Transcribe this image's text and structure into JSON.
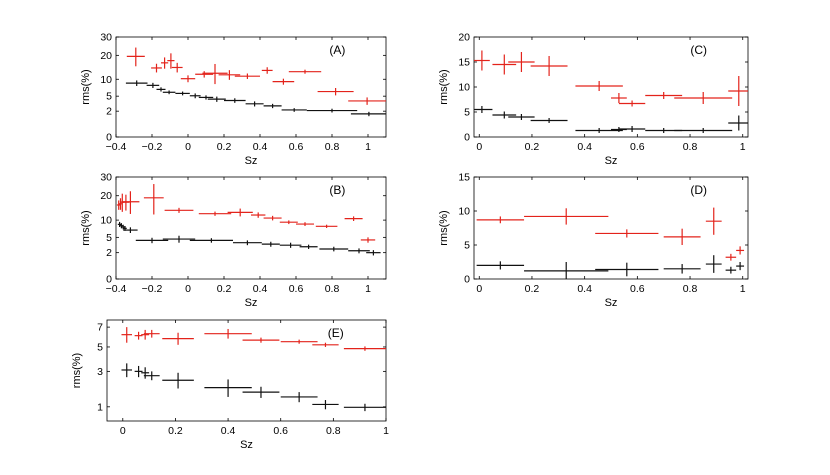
{
  "colors": {
    "red": "#e3231b",
    "black": "#111111",
    "axis": "#000000"
  },
  "chart_data": [
    {
      "id": "A",
      "type": "scatter",
      "title": "(A)",
      "xlabel": "Sz",
      "ylabel": "rms(%)",
      "xlim": [
        -0.4,
        1.1
      ],
      "ylim": [
        0,
        30
      ],
      "yscale": "sqrt",
      "xticks": [
        -0.4,
        -0.2,
        0,
        0.2,
        0.4,
        0.6,
        0.8,
        1
      ],
      "xtick_labels": [
        "−0.4",
        "−0.2",
        "0",
        "0.2",
        "0.4",
        "0.6",
        "0.8",
        "1"
      ],
      "yticks": [
        0,
        2,
        5,
        10,
        20,
        30
      ],
      "ytick_labels": [
        "0",
        "2",
        "5",
        "10",
        "20",
        "30"
      ],
      "series": [
        {
          "name": "red",
          "points": [
            [
              -0.29,
              0.05,
              19.5,
              4.5
            ],
            [
              -0.175,
              0.03,
              14.3,
              1.8
            ],
            [
              -0.13,
              0.02,
              16.5,
              2.5
            ],
            [
              -0.095,
              0.02,
              17.5,
              3.5
            ],
            [
              -0.06,
              0.03,
              14.5,
              2
            ],
            [
              0.0,
              0.04,
              10.2,
              1.2
            ],
            [
              0.09,
              0.05,
              11.8,
              1.2
            ],
            [
              0.15,
              0.07,
              12.2,
              3.8
            ],
            [
              0.23,
              0.06,
              11.6,
              1.8
            ],
            [
              0.33,
              0.07,
              11.1,
              1.0
            ],
            [
              0.44,
              0.03,
              13.3,
              1.3
            ],
            [
              0.53,
              0.06,
              9.2,
              1.0
            ],
            [
              0.65,
              0.09,
              12.8,
              0.8
            ],
            [
              0.82,
              0.1,
              6.2,
              1.0
            ],
            [
              0.995,
              0.105,
              3.9,
              0.8
            ]
          ]
        },
        {
          "name": "black",
          "points": [
            [
              -0.285,
              0.06,
              8.7,
              0.9
            ],
            [
              -0.195,
              0.035,
              8.0,
              0.8
            ],
            [
              -0.15,
              0.025,
              6.8,
              0.6
            ],
            [
              -0.105,
              0.035,
              6.0,
              0.5
            ],
            [
              -0.03,
              0.04,
              5.7,
              0.5
            ],
            [
              0.04,
              0.03,
              5.1,
              0.6
            ],
            [
              0.1,
              0.04,
              4.7,
              0.5
            ],
            [
              0.16,
              0.05,
              4.3,
              0.6
            ],
            [
              0.26,
              0.06,
              4.0,
              0.5
            ],
            [
              0.37,
              0.05,
              3.3,
              0.5
            ],
            [
              0.47,
              0.05,
              2.9,
              0.4
            ],
            [
              0.59,
              0.07,
              2.2,
              0.3
            ],
            [
              0.8,
              0.14,
              2.1,
              0.3
            ],
            [
              1.005,
              0.1,
              1.6,
              0.3
            ]
          ]
        }
      ]
    },
    {
      "id": "B",
      "type": "scatter",
      "title": "(B)",
      "xlabel": "Sz",
      "ylabel": "rms(%)",
      "xlim": [
        -0.4,
        1.1
      ],
      "ylim": [
        0,
        30
      ],
      "yscale": "sqrt",
      "xticks": [
        -0.4,
        -0.2,
        0,
        0.2,
        0.4,
        0.6,
        0.8,
        1
      ],
      "xtick_labels": [
        "−0.4",
        "−0.2",
        "0",
        "0.2",
        "0.4",
        "0.6",
        "0.8",
        "1"
      ],
      "yticks": [
        0,
        2,
        5,
        10,
        20,
        30
      ],
      "ytick_labels": [
        "0",
        "2",
        "5",
        "10",
        "20",
        "30"
      ],
      "series": [
        {
          "name": "red",
          "points": [
            [
              -0.385,
              0.01,
              15.8,
              2.0
            ],
            [
              -0.375,
              0.01,
              16.3,
              2.5
            ],
            [
              -0.365,
              0.01,
              17.0,
              4.0
            ],
            [
              -0.345,
              0.02,
              17.0,
              3.5
            ],
            [
              -0.32,
              0.05,
              17.2,
              5.0
            ],
            [
              -0.19,
              0.055,
              19.0,
              7.0
            ],
            [
              -0.05,
              0.08,
              13.6,
              1.0
            ],
            [
              0.15,
              0.09,
              12.3,
              0.8
            ],
            [
              0.29,
              0.07,
              12.8,
              1.5
            ],
            [
              0.39,
              0.04,
              11.8,
              1.0
            ],
            [
              0.47,
              0.05,
              10.7,
              0.8
            ],
            [
              0.56,
              0.05,
              9.3,
              0.6
            ],
            [
              0.65,
              0.05,
              8.7,
              0.6
            ],
            [
              0.77,
              0.06,
              8.0,
              0.5
            ],
            [
              0.92,
              0.05,
              10.5,
              0.8
            ],
            [
              1.0,
              0.04,
              4.4,
              0.6
            ]
          ]
        },
        {
          "name": "black",
          "points": [
            [
              -0.38,
              0.01,
              8.6,
              0.8
            ],
            [
              -0.37,
              0.01,
              8.2,
              0.8
            ],
            [
              -0.36,
              0.01,
              7.8,
              0.7
            ],
            [
              -0.35,
              0.01,
              7.4,
              0.7
            ],
            [
              -0.32,
              0.04,
              6.9,
              0.8
            ],
            [
              -0.2,
              0.09,
              4.3,
              0.6
            ],
            [
              -0.05,
              0.09,
              4.6,
              0.8
            ],
            [
              0.13,
              0.12,
              4.3,
              0.5
            ],
            [
              0.33,
              0.08,
              3.8,
              0.5
            ],
            [
              0.46,
              0.05,
              3.5,
              0.5
            ],
            [
              0.57,
              0.06,
              3.3,
              0.5
            ],
            [
              0.67,
              0.05,
              3.0,
              0.4
            ],
            [
              0.81,
              0.08,
              2.6,
              0.4
            ],
            [
              0.95,
              0.06,
              2.3,
              0.4
            ],
            [
              1.03,
              0.04,
              2.0,
              0.4
            ]
          ]
        }
      ]
    },
    {
      "id": "C",
      "type": "scatter",
      "title": "(C)",
      "xlabel": "Sz",
      "ylabel": "rms(%)",
      "xlim": [
        -0.02,
        1.02
      ],
      "ylim": [
        0,
        20
      ],
      "yscale": "linear",
      "xticks": [
        0,
        0.2,
        0.4,
        0.6,
        0.8,
        1
      ],
      "xtick_labels": [
        "0",
        "0.2",
        "0.4",
        "0.6",
        "0.8",
        "1"
      ],
      "yticks": [
        0,
        5,
        10,
        15,
        20
      ],
      "ytick_labels": [
        "0",
        "5",
        "10",
        "15",
        "20"
      ],
      "series": [
        {
          "name": "red",
          "points": [
            [
              0.01,
              0.03,
              15.3,
              2.0
            ],
            [
              0.095,
              0.045,
              14.5,
              2.0
            ],
            [
              0.16,
              0.05,
              15.0,
              2.0
            ],
            [
              0.265,
              0.07,
              14.2,
              2.0
            ],
            [
              0.455,
              0.09,
              10.2,
              1.0
            ],
            [
              0.53,
              0.03,
              7.8,
              1.0
            ],
            [
              0.58,
              0.05,
              6.7,
              0.6
            ],
            [
              0.7,
              0.07,
              8.3,
              0.7
            ],
            [
              0.85,
              0.11,
              7.8,
              1.2
            ],
            [
              0.985,
              0.04,
              9.2,
              3.0
            ]
          ]
        },
        {
          "name": "black",
          "points": [
            [
              0.01,
              0.04,
              5.5,
              0.7
            ],
            [
              0.095,
              0.045,
              4.4,
              0.7
            ],
            [
              0.16,
              0.05,
              4.0,
              0.6
            ],
            [
              0.265,
              0.07,
              3.3,
              0.5
            ],
            [
              0.455,
              0.09,
              1.3,
              0.5
            ],
            [
              0.53,
              0.03,
              1.5,
              0.5
            ],
            [
              0.58,
              0.05,
              1.6,
              0.6
            ],
            [
              0.7,
              0.07,
              1.3,
              0.5
            ],
            [
              0.85,
              0.11,
              1.3,
              0.5
            ],
            [
              0.985,
              0.04,
              2.8,
              1.5
            ]
          ]
        }
      ]
    },
    {
      "id": "D",
      "type": "scatter",
      "title": "(D)",
      "xlabel": "Sz",
      "ylabel": "rms(%)",
      "xlim": [
        -0.02,
        1.02
      ],
      "ylim": [
        0,
        15
      ],
      "yscale": "linear",
      "xticks": [
        0,
        0.2,
        0.4,
        0.6,
        0.8,
        1
      ],
      "xtick_labels": [
        "0",
        "0.2",
        "0.4",
        "0.6",
        "0.8",
        "1"
      ],
      "yticks": [
        0,
        5,
        10,
        15
      ],
      "ytick_labels": [
        "0",
        "5",
        "10",
        "15"
      ],
      "series": [
        {
          "name": "red",
          "points": [
            [
              0.08,
              0.09,
              8.7,
              0.5
            ],
            [
              0.33,
              0.16,
              9.2,
              1.2
            ],
            [
              0.56,
              0.12,
              6.7,
              0.6
            ],
            [
              0.77,
              0.07,
              6.2,
              1.2
            ],
            [
              0.89,
              0.03,
              8.5,
              2.0
            ],
            [
              0.955,
              0.02,
              3.2,
              0.5
            ],
            [
              0.99,
              0.015,
              4.2,
              0.6
            ]
          ]
        },
        {
          "name": "black",
          "points": [
            [
              0.08,
              0.09,
              2.0,
              0.6
            ],
            [
              0.33,
              0.16,
              1.2,
              1.3
            ],
            [
              0.56,
              0.12,
              1.4,
              1.0
            ],
            [
              0.77,
              0.07,
              1.5,
              0.7
            ],
            [
              0.89,
              0.03,
              2.2,
              1.3
            ],
            [
              0.955,
              0.02,
              1.3,
              0.5
            ],
            [
              0.99,
              0.015,
              1.9,
              0.6
            ]
          ]
        }
      ]
    },
    {
      "id": "E",
      "type": "scatter",
      "title": "(E)",
      "xlabel": "Sz",
      "ylabel": "rms(%)",
      "xlim": [
        -0.06,
        1.0
      ],
      "ylim": [
        0.5,
        7.8
      ],
      "yscale": "sqrt",
      "xticks": [
        0,
        0.2,
        0.4,
        0.6,
        0.8,
        1
      ],
      "xtick_labels": [
        "0",
        "0.2",
        "0.4",
        "0.6",
        "0.8",
        "1"
      ],
      "yticks": [
        1,
        3,
        5,
        7
      ],
      "ytick_labels": [
        "1",
        "3",
        "5",
        "7"
      ],
      "series": [
        {
          "name": "red",
          "points": [
            [
              0.015,
              0.02,
              6.2,
              0.8
            ],
            [
              0.06,
              0.015,
              6.1,
              0.4
            ],
            [
              0.085,
              0.015,
              6.2,
              0.5
            ],
            [
              0.11,
              0.03,
              6.3,
              0.4
            ],
            [
              0.21,
              0.06,
              5.8,
              0.6
            ],
            [
              0.4,
              0.09,
              6.3,
              0.5
            ],
            [
              0.525,
              0.07,
              5.65,
              0.25
            ],
            [
              0.67,
              0.07,
              5.5,
              0.2
            ],
            [
              0.77,
              0.05,
              5.2,
              0.2
            ],
            [
              0.92,
              0.08,
              4.85,
              0.2
            ]
          ]
        },
        {
          "name": "black",
          "points": [
            [
              0.015,
              0.02,
              3.1,
              0.5
            ],
            [
              0.06,
              0.015,
              3.0,
              0.4
            ],
            [
              0.085,
              0.015,
              2.9,
              0.4
            ],
            [
              0.11,
              0.03,
              2.7,
              0.3
            ],
            [
              0.21,
              0.06,
              2.4,
              0.5
            ],
            [
              0.4,
              0.09,
              1.95,
              0.5
            ],
            [
              0.525,
              0.07,
              1.7,
              0.3
            ],
            [
              0.67,
              0.07,
              1.45,
              0.25
            ],
            [
              0.77,
              0.05,
              1.1,
              0.2
            ],
            [
              0.92,
              0.08,
              0.98,
              0.15
            ]
          ]
        }
      ]
    }
  ]
}
